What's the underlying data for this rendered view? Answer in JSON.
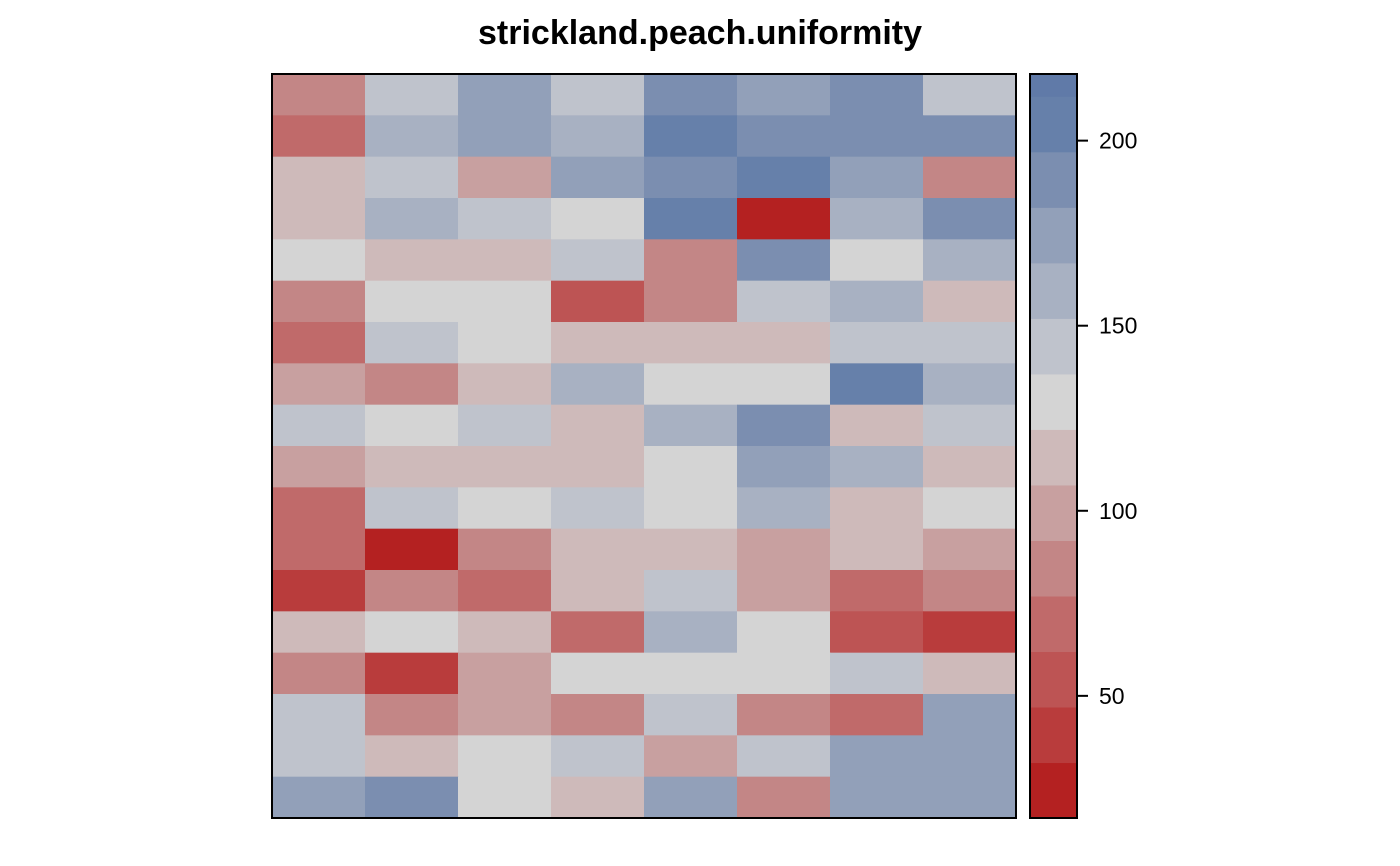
{
  "chart_data": {
    "type": "heatmap",
    "title": "strickland.peach.uniformity",
    "xlabel": "",
    "ylabel": "",
    "n_rows": 18,
    "n_cols": 8,
    "row_order": "top-to-bottom",
    "values": [
      [
        88,
        137,
        172,
        140,
        186,
        172,
        186,
        140
      ],
      [
        74,
        158,
        172,
        158,
        203,
        186,
        186,
        186
      ],
      [
        116,
        140,
        102,
        172,
        186,
        203,
        172,
        88
      ],
      [
        116,
        158,
        140,
        130,
        203,
        30,
        158,
        186
      ],
      [
        130,
        116,
        116,
        140,
        88,
        186,
        130,
        158
      ],
      [
        88,
        130,
        130,
        60,
        88,
        140,
        158,
        116
      ],
      [
        74,
        140,
        130,
        116,
        116,
        116,
        140,
        140
      ],
      [
        102,
        88,
        116,
        158,
        130,
        130,
        203,
        158
      ],
      [
        140,
        130,
        140,
        116,
        158,
        186,
        116,
        140
      ],
      [
        102,
        116,
        116,
        116,
        130,
        172,
        158,
        116
      ],
      [
        74,
        140,
        130,
        140,
        130,
        158,
        116,
        130
      ],
      [
        74,
        20,
        88,
        116,
        116,
        102,
        116,
        102
      ],
      [
        45,
        88,
        74,
        116,
        140,
        102,
        74,
        88
      ],
      [
        116,
        130,
        116,
        74,
        158,
        130,
        60,
        45
      ],
      [
        88,
        45,
        102,
        130,
        130,
        130,
        140,
        116
      ],
      [
        140,
        88,
        102,
        88,
        140,
        88,
        74,
        172
      ],
      [
        140,
        116,
        130,
        140,
        102,
        140,
        172,
        172
      ],
      [
        172,
        186,
        130,
        116,
        172,
        88,
        172,
        172
      ]
    ],
    "colorbar": {
      "breaks": [
        17,
        32,
        47,
        62,
        77,
        92,
        107,
        122,
        137,
        152,
        167,
        182,
        197,
        212,
        218
      ],
      "colors": [
        "#b42121",
        "#b93c3c",
        "#bd5454",
        "#c06a6a",
        "#c38686",
        "#c8a0a0",
        "#cebaba",
        "#d4d4d4",
        "#bfc3cc",
        "#a8b1c2",
        "#92a0b9",
        "#7b8eb0",
        "#6680aa",
        "#607aa8"
      ],
      "ticks": [
        50,
        100,
        150,
        200
      ],
      "tick_labels": [
        "50",
        "100",
        "150",
        "200"
      ],
      "range": [
        17,
        218
      ]
    },
    "grid": false,
    "legend_placement": "right"
  }
}
